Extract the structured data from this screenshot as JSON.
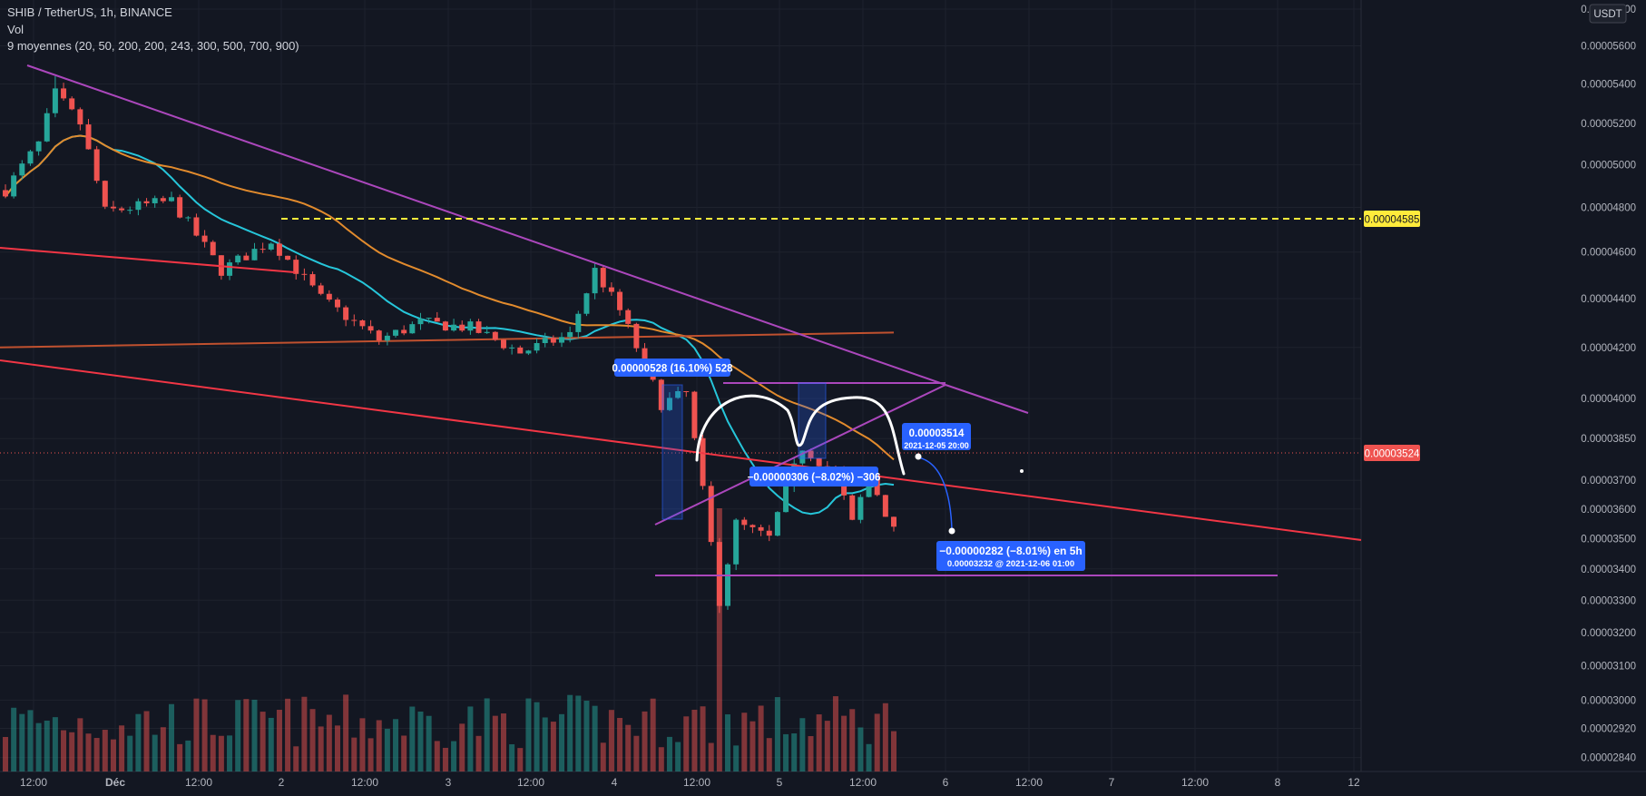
{
  "header": {
    "symbol_line": "SHIB / TetherUS, 1h, BINANCE",
    "vol_label": "Vol",
    "ma_label": "9 moyennes (20, 50, 200, 200, 243, 300, 500, 700, 900)"
  },
  "currency_label": "USDT",
  "colors": {
    "background": "#131722",
    "up": "#26a69a",
    "down": "#ef5350",
    "ma_fast": "#26c6da",
    "ma_slow": "#e28b2d",
    "ma_long": "#c0512f",
    "trendline": "#ab47bc",
    "support": "#f23645",
    "dashed_level": "#ffeb3b",
    "label_blue": "#2962ff"
  },
  "chart_data": {
    "type": "candlestick",
    "title": "SHIB / TetherUS, 1h, BINANCE",
    "price_axis": {
      "scale": "log",
      "ticks": [
        "0.00005800",
        "0.00005600",
        "0.00005400",
        "0.00005200",
        "0.00005000",
        "0.00004800",
        "0.00004600",
        "0.00004400",
        "0.00004200",
        "0.00004000",
        "0.00003850",
        "0.00003700",
        "0.00003600",
        "0.00003500",
        "0.00003400",
        "0.00003300",
        "0.00003200",
        "0.00003100",
        "0.00003000",
        "0.00002920",
        "0.00002840"
      ]
    },
    "time_axis": {
      "ticks": [
        "12:00",
        "Déc",
        "12:00",
        "2",
        "12:00",
        "3",
        "12:00",
        "4",
        "12:00",
        "5",
        "12:00",
        "6",
        "12:00",
        "7",
        "12:00",
        "8",
        "12"
      ]
    },
    "levels": [
      {
        "label": "0.00004585",
        "value": 4.585e-05,
        "style": "dashed"
      },
      {
        "label": "0.00003524",
        "value": 3.524e-05,
        "style": "current"
      }
    ],
    "series_summary": {
      "start": 4.88e-05,
      "high": 5.44e-05,
      "low": 3.26e-05,
      "last": 3.524e-05
    },
    "annotations": {
      "measure_up": "0.00000528 (16.10%) 528",
      "measure_down": "−0.00000306 (−8.02%) −306",
      "point_value": "0.00003514",
      "point_time": "2021-12-05 20:00",
      "projection_line1": "−0.00000282 (−8.01%) en 5h",
      "projection_line2": "0.00003232 @ 2021-12-06  01:00"
    }
  }
}
